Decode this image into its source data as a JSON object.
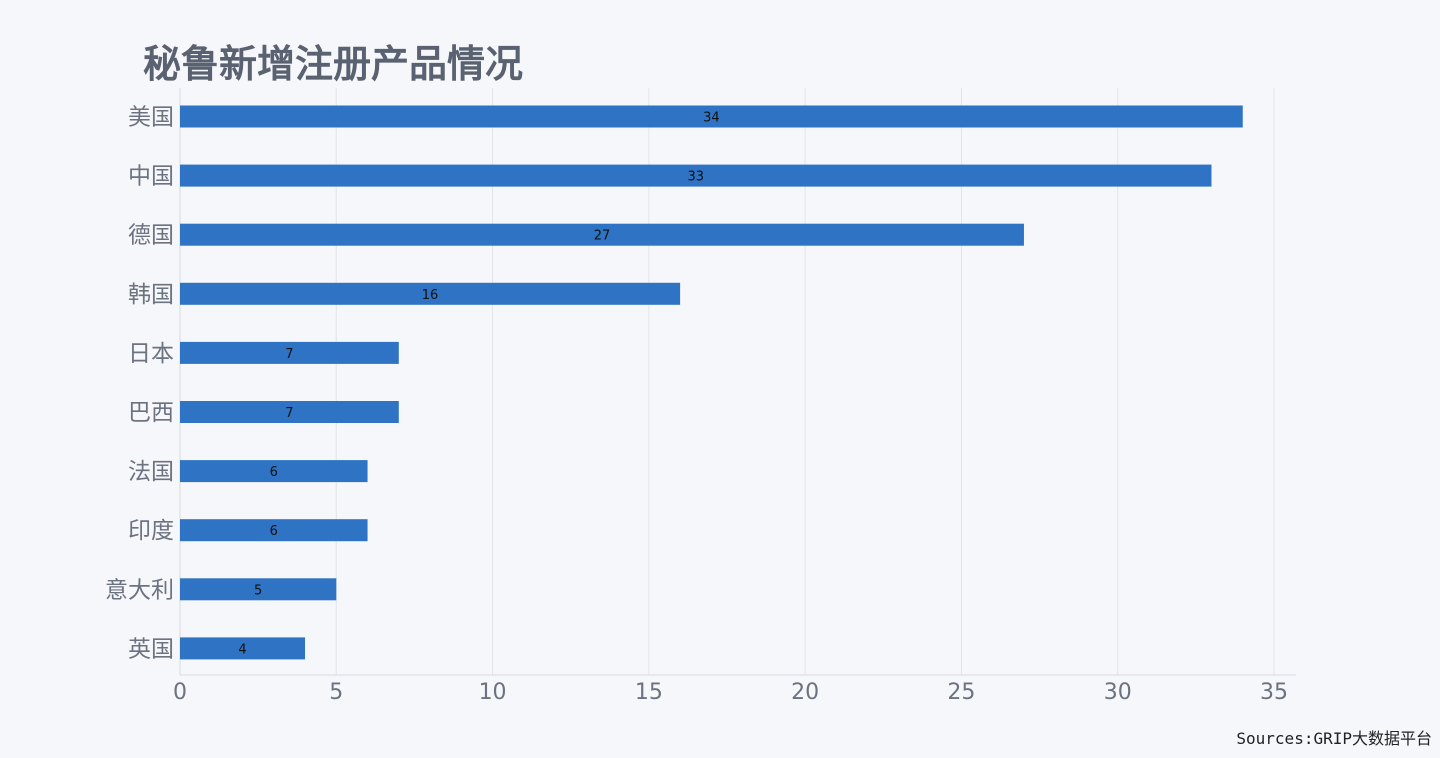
{
  "chart_data": {
    "type": "bar",
    "orientation": "horizontal",
    "title": "秘鲁新增注册产品情况",
    "categories": [
      "美国",
      "中国",
      "德国",
      "韩国",
      "日本",
      "巴西",
      "法国",
      "印度",
      "意大利",
      "英国"
    ],
    "values": [
      34,
      33,
      27,
      16,
      7,
      7,
      6,
      6,
      5,
      4
    ],
    "xlim": [
      0,
      35
    ],
    "x_ticks": [
      0,
      5,
      10,
      15,
      20,
      25,
      30,
      35
    ],
    "grid": "vertical",
    "legend": "none",
    "bar_color": "#2e73c4",
    "source": "Sources:GRIP大数据平台"
  }
}
